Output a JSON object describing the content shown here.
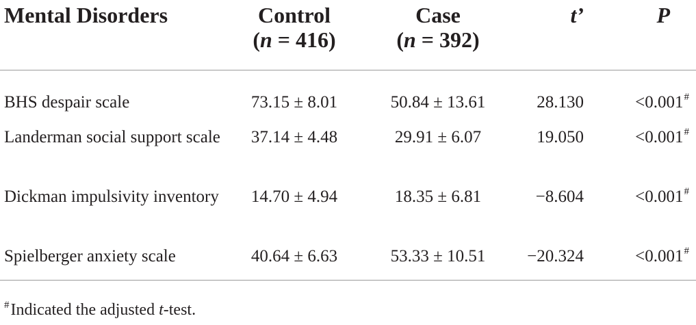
{
  "table": {
    "headers": {
      "label": "Mental Disorders",
      "control_title": "Control",
      "control_n_prefix": "(",
      "control_n_var": "n",
      "control_n_value": " = 416)",
      "case_title": "Case",
      "case_n_prefix": "(",
      "case_n_var": "n",
      "case_n_value": " = 392)",
      "t": "t’",
      "p": "P"
    },
    "rows": [
      {
        "label": "BHS despair scale",
        "control": "73.15 ± 8.01",
        "case": "50.84 ± 13.61",
        "t": "28.130",
        "p": "<0.001",
        "p_mark": "#"
      },
      {
        "label": "Landerman social support scale",
        "control": "37.14 ± 4.48",
        "case": "29.91 ± 6.07",
        "t": "19.050",
        "p": "<0.001",
        "p_mark": "#"
      },
      {
        "label": "Dickman impulsivity inventory",
        "control": "14.70 ± 4.94",
        "case": "18.35 ± 6.81",
        "t": "−8.604",
        "p": "<0.001",
        "p_mark": "#"
      },
      {
        "label": "Spielberger anxiety scale",
        "control": "40.64 ± 6.63",
        "case": "53.33 ± 10.51",
        "t": "−20.324",
        "p": "<0.001",
        "p_mark": "#"
      }
    ]
  },
  "footnote": {
    "mark": "#",
    "text_before": "Indicated the adjusted ",
    "text_italic": "t",
    "text_after": "-test."
  }
}
